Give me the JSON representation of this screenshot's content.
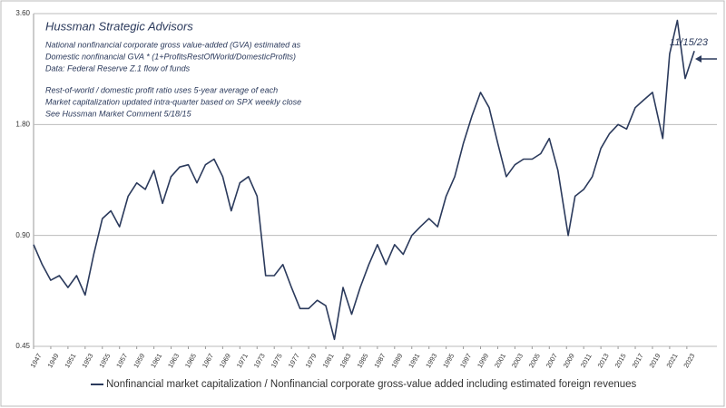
{
  "chart_data": {
    "type": "line",
    "title": "Hussman Strategic Advisors",
    "notes": [
      "National nonfinancial corporate gross value-added (GVA) estimated as",
      "Domestic nonfinancial GVA * (1+ProfitsRestOfWorld/DomesticProfits)",
      "Data: Federal Reserve Z.1 flow of funds",
      "Rest-of-world / domestic profit ratio uses 5-year average of each",
      "Market capitalization updated intra-quarter based on SPX weekly close",
      "See Hussman Market Comment 5/18/15"
    ],
    "date_label": "11/15/23",
    "log_scale": true,
    "grid": true,
    "xlim": [
      1947,
      2026.5
    ],
    "ylim": [
      0.45,
      3.6
    ],
    "yticks": [
      {
        "value": 0.45,
        "label": "0.45"
      },
      {
        "value": 0.9,
        "label": "0.90"
      },
      {
        "value": 1.8,
        "label": "1.80"
      },
      {
        "value": 3.6,
        "label": "3.60"
      }
    ],
    "xticks": [
      1947,
      1949,
      1951,
      1953,
      1955,
      1957,
      1959,
      1961,
      1963,
      1965,
      1967,
      1969,
      1971,
      1973,
      1975,
      1977,
      1979,
      1981,
      1983,
      1985,
      1987,
      1989,
      1991,
      1993,
      1995,
      1997,
      1999,
      2001,
      2003,
      2005,
      2007,
      2009,
      2011,
      2013,
      2015,
      2017,
      2019,
      2021,
      2023
    ],
    "x": [
      1947,
      1948,
      1949,
      1950,
      1951,
      1952,
      1953,
      1954,
      1955,
      1956,
      1957,
      1958,
      1959,
      1960,
      1961,
      1962,
      1963,
      1964,
      1965,
      1966,
      1967,
      1968,
      1969,
      1970,
      1971,
      1972,
      1973,
      1974,
      1975,
      1976,
      1977,
      1978,
      1979,
      1980,
      1981,
      1982,
      1983,
      1984,
      1985,
      1986,
      1987,
      1988,
      1989,
      1990,
      1991,
      1992,
      1993,
      1994,
      1995,
      1996,
      1997,
      1998,
      1999,
      2000,
      2001,
      2002,
      2003,
      2004,
      2005,
      2006,
      2007,
      2008,
      2009.2,
      2010,
      2011,
      2012,
      2013,
      2014,
      2015,
      2016,
      2017,
      2018,
      2019,
      2020.2,
      2021,
      2021.9,
      2022.8,
      2023.87
    ],
    "series": [
      {
        "name": "Nonfinancial market capitalization / Nonfinancial corporate gross-value added including estimated foreign revenues",
        "color": "#2b3a5c",
        "values": [
          0.85,
          0.75,
          0.68,
          0.7,
          0.65,
          0.7,
          0.62,
          0.8,
          1.0,
          1.05,
          0.95,
          1.15,
          1.25,
          1.2,
          1.35,
          1.1,
          1.3,
          1.38,
          1.4,
          1.25,
          1.4,
          1.45,
          1.3,
          1.05,
          1.25,
          1.3,
          1.15,
          0.7,
          0.7,
          0.75,
          0.65,
          0.57,
          0.57,
          0.6,
          0.58,
          0.47,
          0.65,
          0.55,
          0.65,
          0.75,
          0.85,
          0.75,
          0.85,
          0.8,
          0.9,
          0.95,
          1.0,
          0.95,
          1.15,
          1.3,
          1.6,
          1.9,
          2.2,
          2.0,
          1.6,
          1.3,
          1.4,
          1.45,
          1.45,
          1.5,
          1.65,
          1.35,
          0.9,
          1.15,
          1.2,
          1.3,
          1.55,
          1.7,
          1.8,
          1.75,
          2.0,
          2.1,
          2.2,
          1.65,
          2.8,
          3.45,
          2.4,
          2.85
        ]
      }
    ]
  }
}
